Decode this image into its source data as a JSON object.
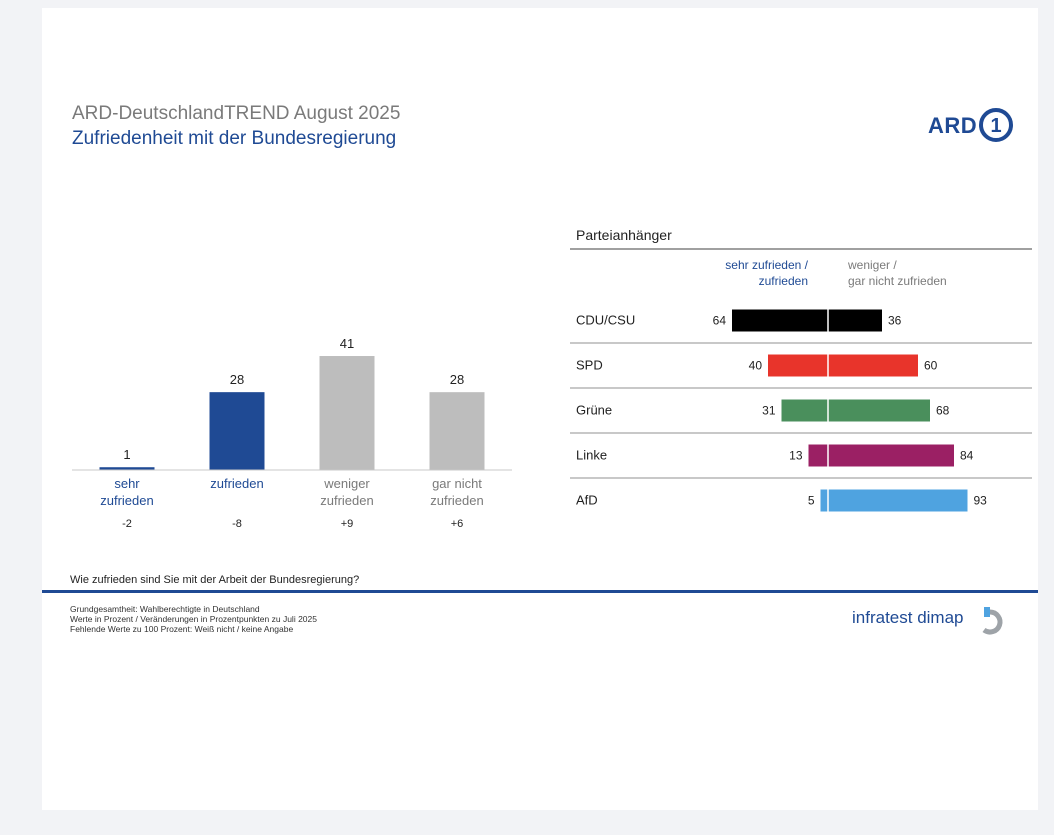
{
  "header": {
    "title": "ARD-DeutschlandTREND August 2025",
    "subtitle": "Zufriedenheit mit der Bundesregierung",
    "logo_text": "ARD",
    "logo_mark": "1"
  },
  "colors": {
    "navy": "#1f4a94",
    "grey_bar": "#bdbdbd",
    "grey_text": "#7a7a7a",
    "rule": "#c8c8c8"
  },
  "chart_data": [
    {
      "type": "bar",
      "title": "",
      "categories": [
        {
          "label_lines": [
            "sehr",
            "zufrieden"
          ],
          "value": 1,
          "change": "-2",
          "color": "#1f4a94",
          "label_color": "#1f4a94"
        },
        {
          "label_lines": [
            "zufrieden"
          ],
          "value": 28,
          "change": "-8",
          "color": "#1f4a94",
          "label_color": "#1f4a94"
        },
        {
          "label_lines": [
            "weniger",
            "zufrieden"
          ],
          "value": 41,
          "change": "+9",
          "color": "#bdbdbd",
          "label_color": "#7a7a7a"
        },
        {
          "label_lines": [
            "gar nicht",
            "zufrieden"
          ],
          "value": 28,
          "change": "+6",
          "color": "#bdbdbd",
          "label_color": "#7a7a7a"
        }
      ],
      "ylim": [
        0,
        50
      ],
      "grid": false,
      "xlabel": "",
      "ylabel": ""
    },
    {
      "type": "bar",
      "title": "Parteianhänger",
      "left_header_lines": [
        "sehr zufrieden /",
        "zufrieden"
      ],
      "right_header_lines": [
        "weniger /",
        "gar nicht zufrieden"
      ],
      "rows": [
        {
          "party": "CDU/CSU",
          "left": 64,
          "right": 36,
          "color": "#000000"
        },
        {
          "party": "SPD",
          "left": 40,
          "right": 60,
          "color": "#e8342b"
        },
        {
          "party": "Grüne",
          "left": 31,
          "right": 68,
          "color": "#4a8f5c"
        },
        {
          "party": "Linke",
          "left": 13,
          "right": 84,
          "color": "#9b2064"
        },
        {
          "party": "AfD",
          "left": 5,
          "right": 93,
          "color": "#4fa3e0"
        }
      ],
      "xlim": [
        0,
        100
      ]
    }
  ],
  "question": "Wie zufrieden sind Sie mit der Arbeit der Bundesregierung?",
  "footer": {
    "line1": "Grundgesamtheit: Wahlberechtigte in Deutschland",
    "line2": "Werte in Prozent / Veränderungen in Prozentpunkten zu Juli 2025",
    "line3": "Fehlende Werte zu 100 Prozent: Weiß nicht / keine Angabe",
    "brand": "infratest dimap"
  }
}
